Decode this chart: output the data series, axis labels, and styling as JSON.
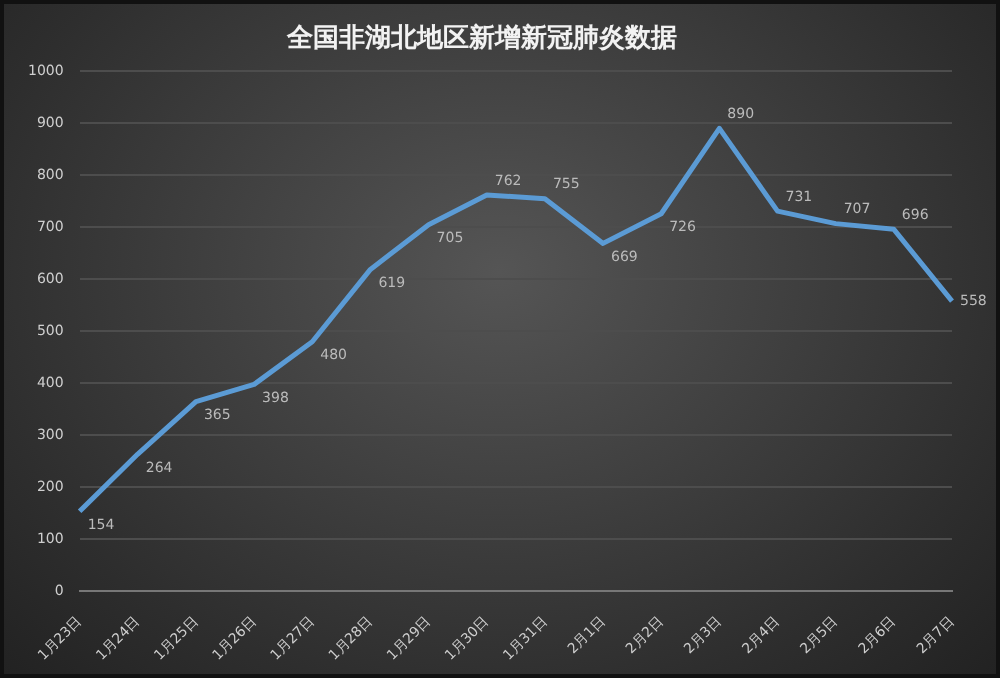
{
  "chart_data": {
    "type": "line",
    "title": "全国非湖北地区新增新冠肺炎数据",
    "categories": [
      "1月23日",
      "1月24日",
      "1月25日",
      "1月26日",
      "1月27日",
      "1月28日",
      "1月29日",
      "1月30日",
      "1月31日",
      "2月1日",
      "2月2日",
      "2月3日",
      "2月4日",
      "2月5日",
      "2月6日",
      "2月7日"
    ],
    "series": [
      {
        "color": "#5b9bd5",
        "values": [
          154,
          264,
          365,
          398,
          480,
          619,
          705,
          762,
          755,
          669,
          726,
          890,
          731,
          707,
          696,
          558
        ]
      }
    ],
    "ylim": [
      0,
      1000
    ],
    "yticks": [
      0,
      100,
      200,
      300,
      400,
      500,
      600,
      700,
      800,
      900,
      1000
    ],
    "grid": "y",
    "legend": false,
    "marker": "none",
    "line_style": "solid",
    "data_labels": true
  }
}
